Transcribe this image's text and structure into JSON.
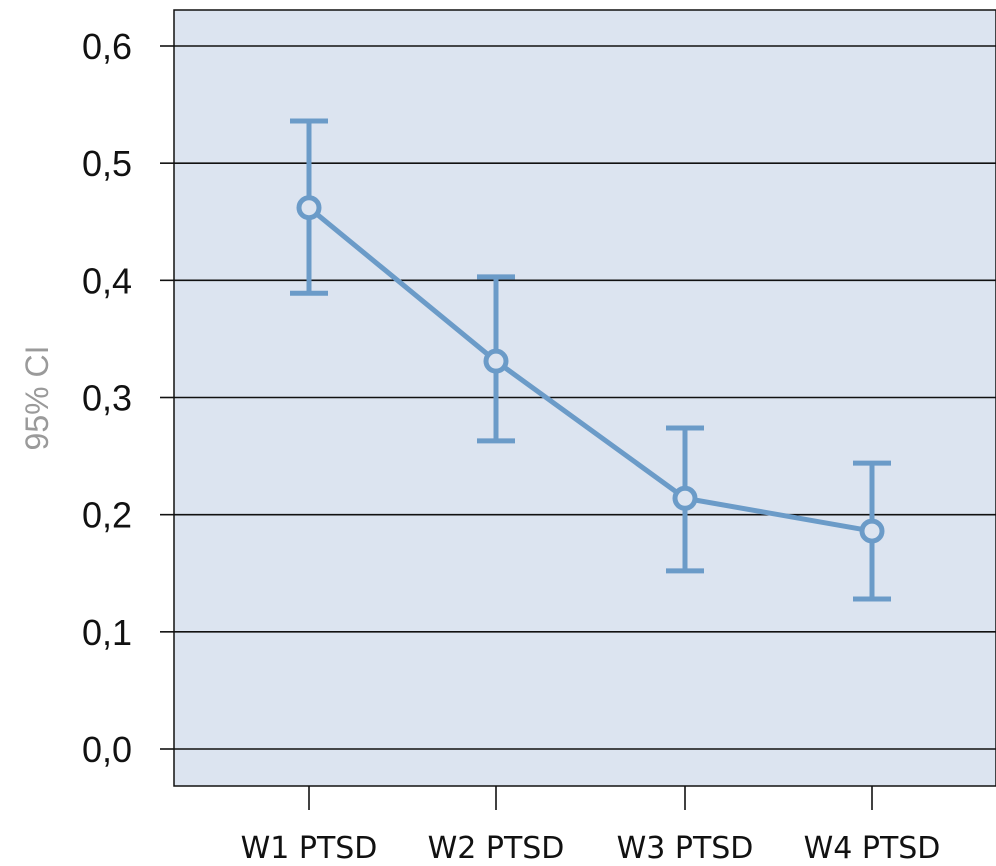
{
  "chart_data": {
    "type": "line",
    "title": "",
    "xlabel": "",
    "ylabel": "95% CI",
    "ylim": [
      0,
      0.6
    ],
    "y_ticks": [
      {
        "value": 0.0,
        "label": "0,0"
      },
      {
        "value": 0.1,
        "label": "0,1"
      },
      {
        "value": 0.2,
        "label": "0,2"
      },
      {
        "value": 0.3,
        "label": "0,3"
      },
      {
        "value": 0.4,
        "label": "0,4"
      },
      {
        "value": 0.5,
        "label": "0,5"
      },
      {
        "value": 0.6,
        "label": "0,6"
      }
    ],
    "grid": true,
    "categories": [
      "W1 PTSD",
      "W2 PTSD",
      "W3 PTSD",
      "W4 PTSD"
    ],
    "series": [
      {
        "values": [
          0.462,
          0.331,
          0.214,
          0.186
        ],
        "ci_lower": [
          0.389,
          0.263,
          0.152,
          0.128
        ],
        "ci_upper": [
          0.536,
          0.403,
          0.274,
          0.244
        ]
      }
    ],
    "colors": {
      "plot_background": "#dce4f0",
      "series": "#6b9bc8",
      "grid": "#111111",
      "ylabel": "#9a9a9a"
    }
  }
}
